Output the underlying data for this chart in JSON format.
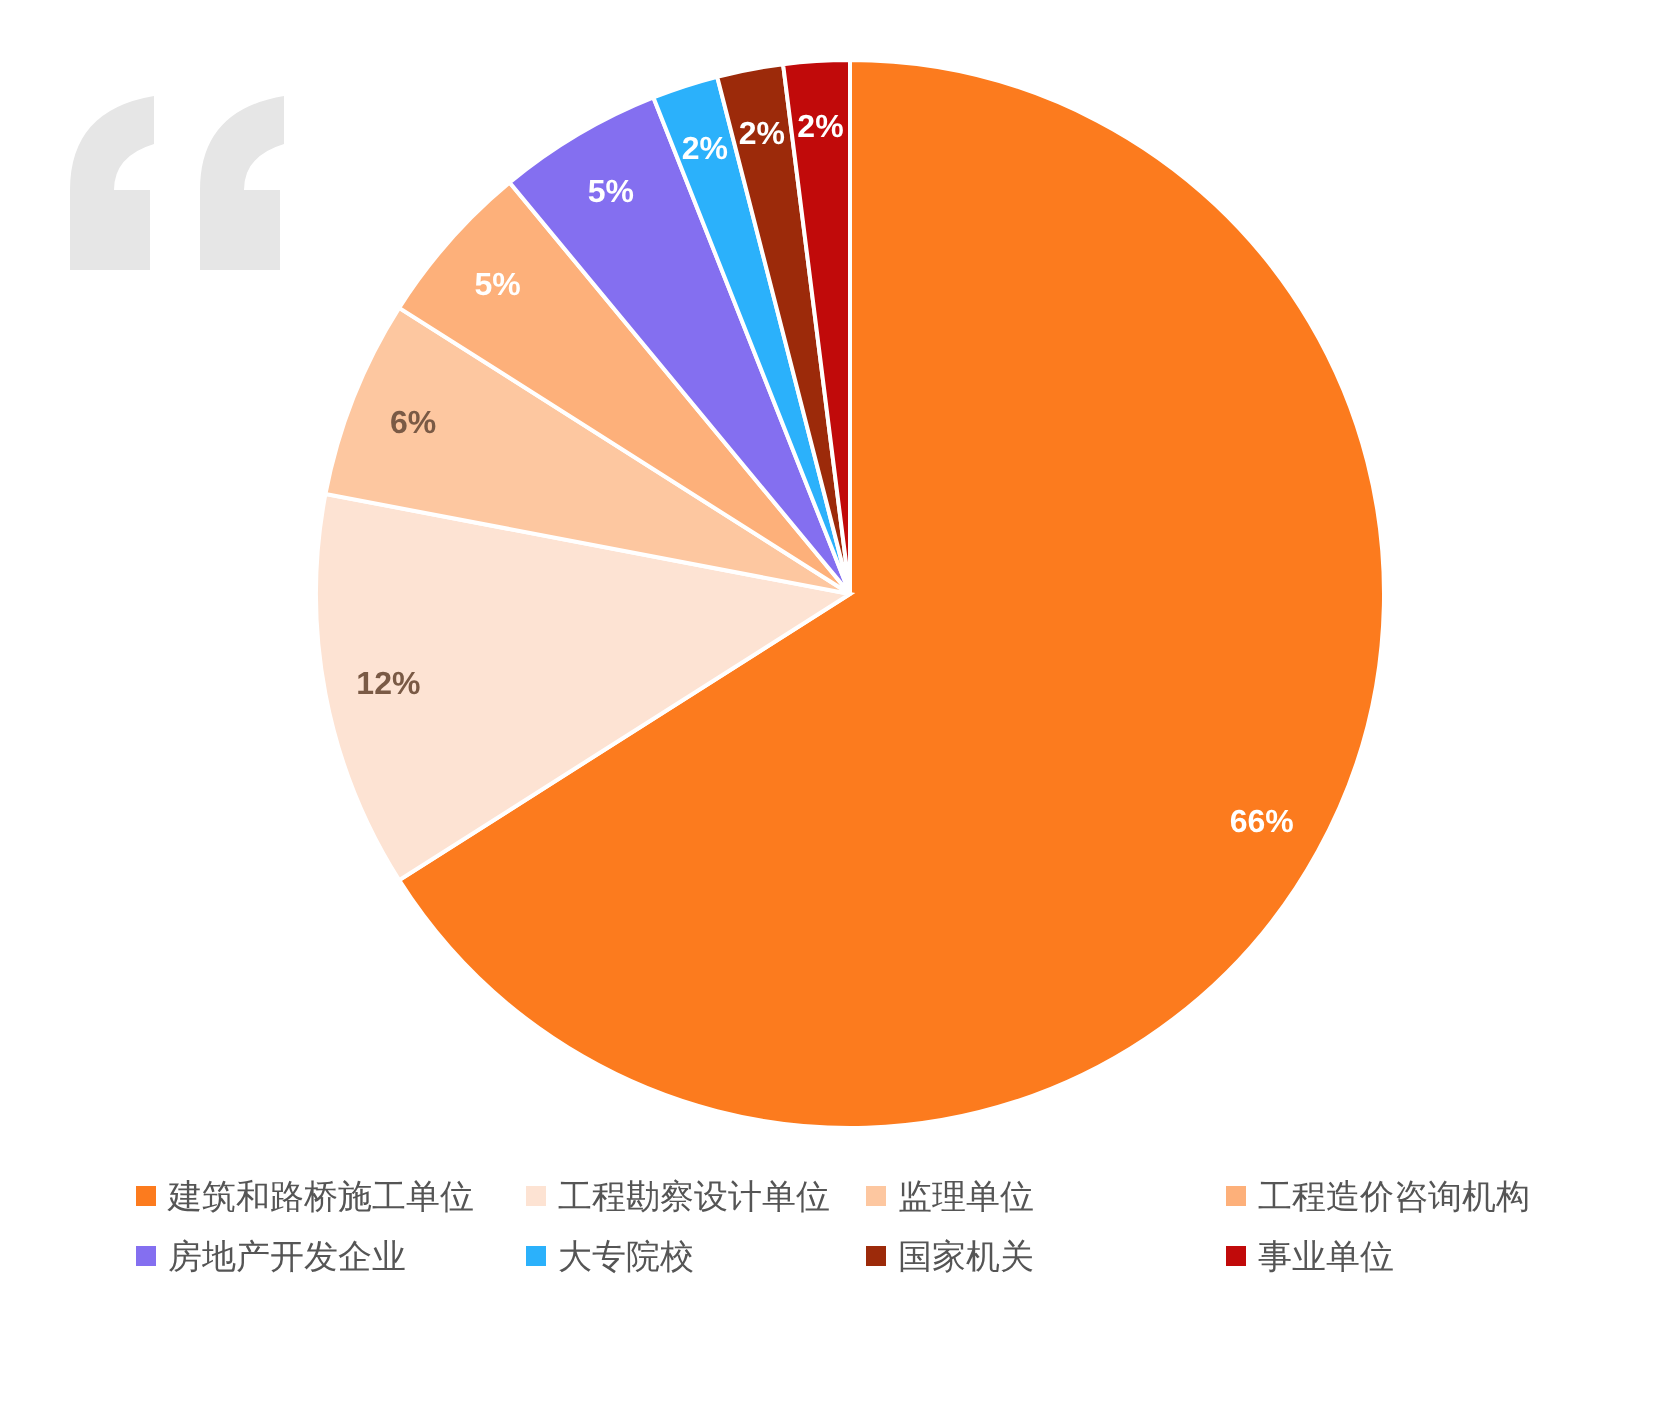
{
  "chart_data": {
    "type": "pie",
    "categories": [
      "建筑和路桥施工单位",
      "工程勘察设计单位",
      "监理单位",
      "工程造价咨询机构",
      "房地产开发企业",
      "大专院校",
      "国家机关",
      "事业单位"
    ],
    "values": [
      66,
      12,
      6,
      5,
      5,
      2,
      2,
      2
    ],
    "colors": [
      "#fc7b1e",
      "#fde3d3",
      "#fdc7a0",
      "#fdb07a",
      "#846ff0",
      "#2bb1fb",
      "#9c2a0a",
      "#c10a0a"
    ],
    "value_labels": [
      "66%",
      "12%",
      "6%",
      "5%",
      "5%",
      "2%",
      "2%",
      "2%"
    ],
    "legend": "bottom"
  }
}
